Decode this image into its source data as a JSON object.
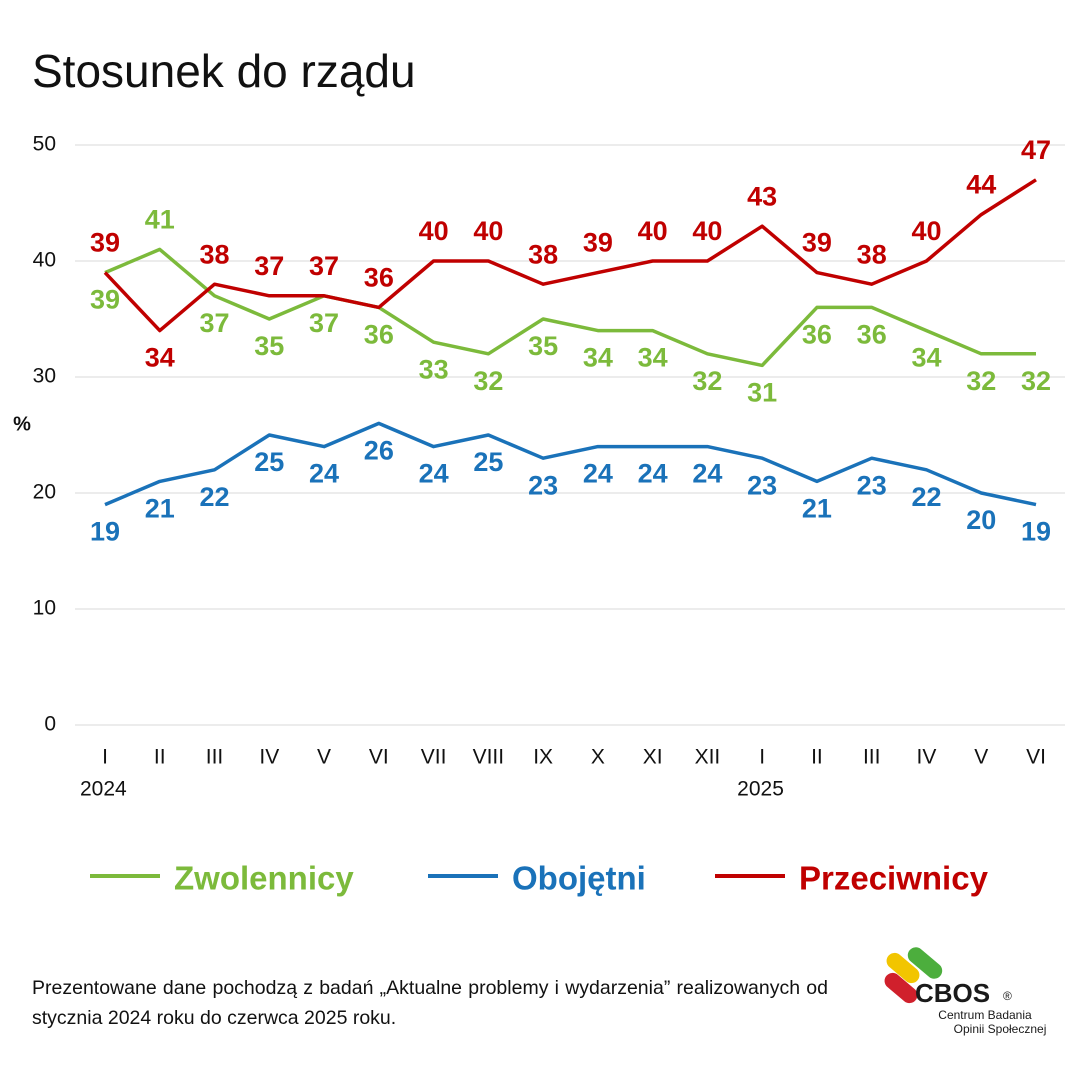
{
  "chart_data": {
    "type": "line",
    "title": "Stosunek do rządu",
    "y_label": "%",
    "categories": [
      "I",
      "II",
      "III",
      "IV",
      "V",
      "VI",
      "VII",
      "VIII",
      "IX",
      "X",
      "XI",
      "XII",
      "I",
      "II",
      "III",
      "IV",
      "V",
      "VI"
    ],
    "x_group_labels": [
      "2024",
      null,
      null,
      null,
      null,
      null,
      null,
      null,
      null,
      null,
      null,
      null,
      "2025",
      null,
      null,
      null,
      null,
      null
    ],
    "series": [
      {
        "name": "Zwolennicy",
        "color": "#7cba3b",
        "values": [
          39,
          41,
          37,
          35,
          37,
          36,
          33,
          32,
          35,
          34,
          34,
          32,
          31,
          36,
          36,
          34,
          32,
          32
        ]
      },
      {
        "name": "Obojętni",
        "color": "#1a72b9",
        "values": [
          19,
          21,
          22,
          25,
          24,
          26,
          24,
          25,
          23,
          24,
          24,
          24,
          23,
          21,
          23,
          22,
          20,
          19
        ]
      },
      {
        "name": "Przeciwnicy",
        "color": "#c00000",
        "values": [
          39,
          34,
          38,
          37,
          37,
          36,
          40,
          40,
          38,
          39,
          40,
          40,
          43,
          39,
          38,
          40,
          44,
          47
        ]
      }
    ],
    "ylim": [
      0,
      50
    ],
    "yticks": [
      0,
      10,
      20,
      30,
      40,
      50
    ],
    "grid": true,
    "footnote": "Prezentowane dane pochodzą z badań „Aktualne problemy i wydarzenia” realizowanych od stycznia 2024 roku do czerwca 2025 roku.",
    "logo": {
      "name": "CBOS",
      "mark": "®",
      "line1": "Centrum Badania",
      "line2": "Opinii Społecznej"
    }
  }
}
